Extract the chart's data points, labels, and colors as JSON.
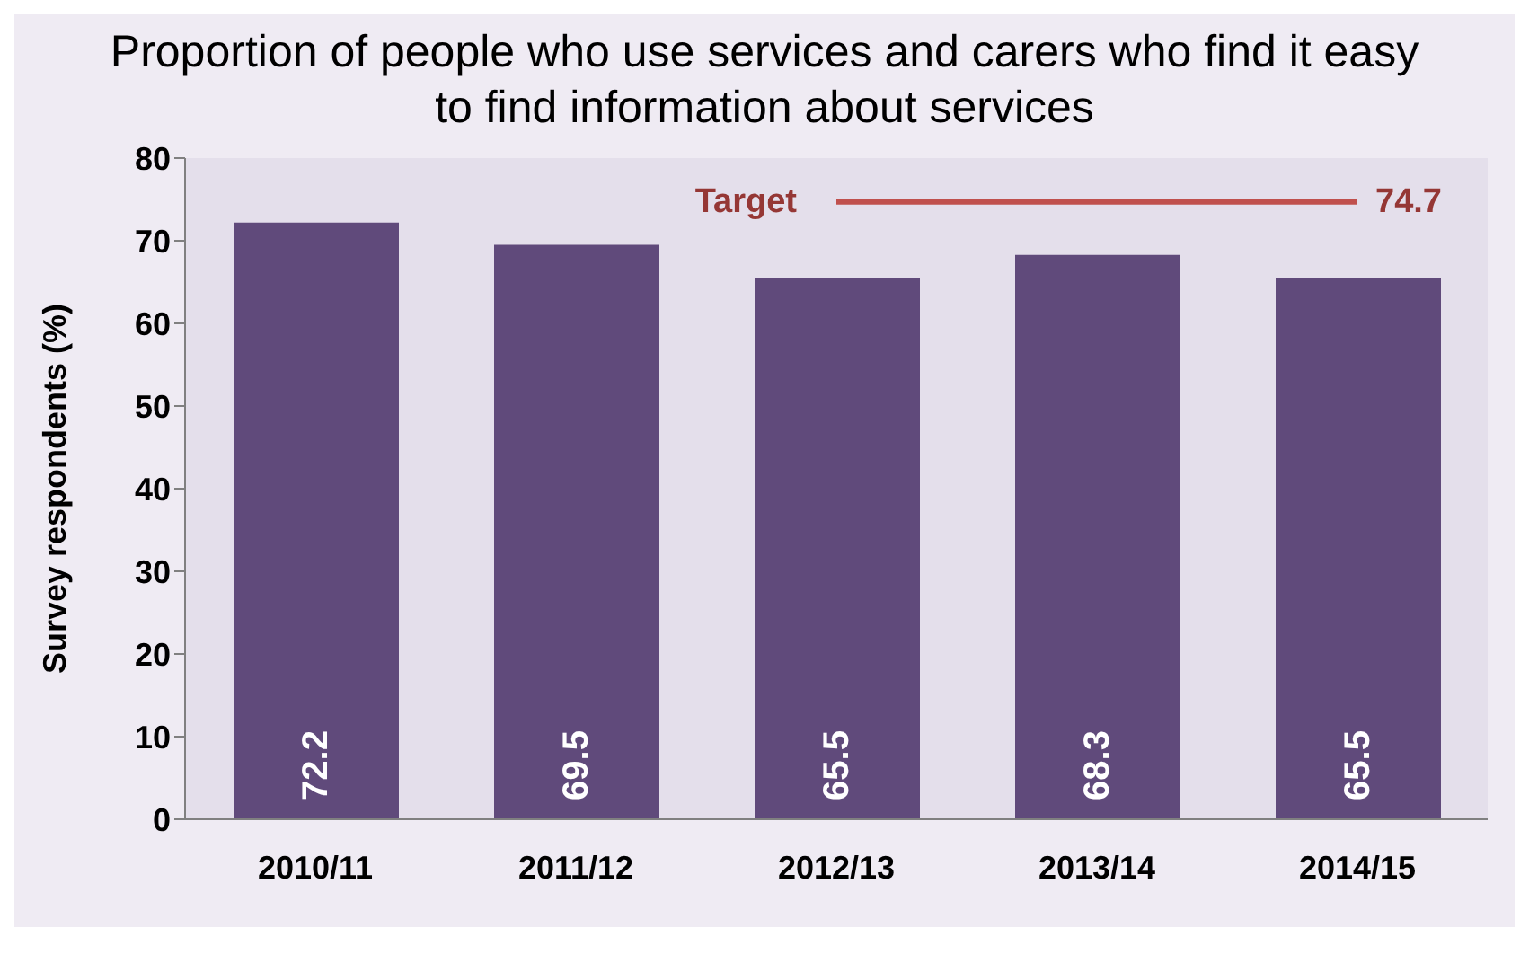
{
  "chart_data": {
    "type": "bar",
    "title": "Proportion of people who use services and carers who find it easy to find information about services",
    "ylabel": "Survey respondents (%)",
    "categories": [
      "2010/11",
      "2011/12",
      "2012/13",
      "2013/14",
      "2014/15"
    ],
    "values": [
      72.2,
      69.5,
      65.5,
      68.3,
      65.5
    ],
    "color": "#604a7b",
    "ylim": [
      0,
      80
    ],
    "yticks": [
      0,
      10,
      20,
      30,
      40,
      50,
      60,
      70,
      80
    ],
    "grid": false,
    "data_labels": true,
    "ref_lines": [
      {
        "axis": "y",
        "value": 74.7,
        "label": "Target",
        "color": "#c0504d"
      }
    ],
    "annotations": [
      "74.7"
    ]
  }
}
